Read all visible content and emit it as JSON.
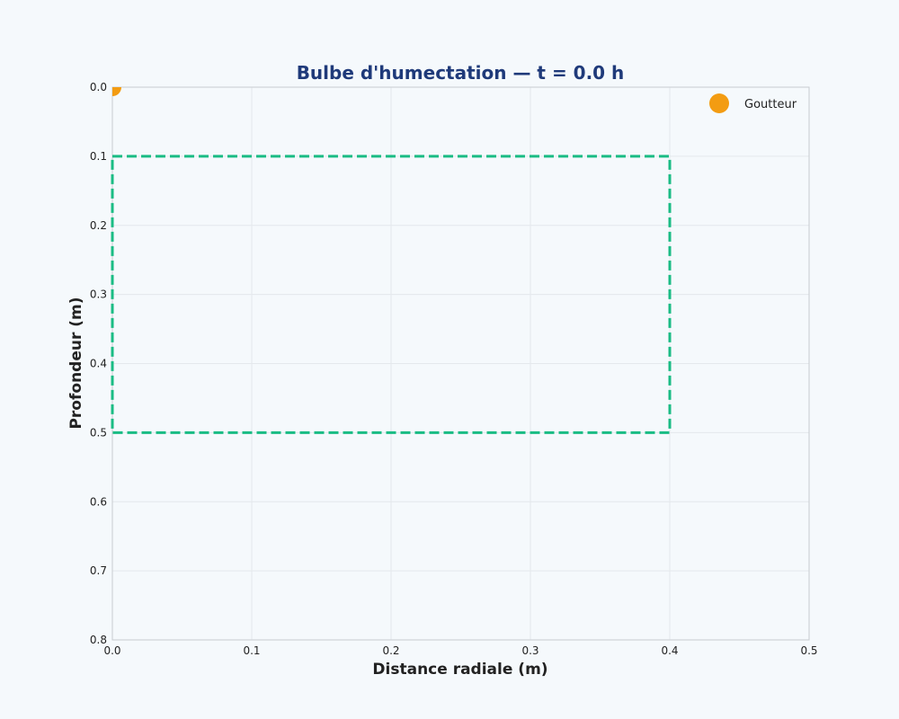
{
  "chart_data": {
    "type": "scatter",
    "title": "Bulbe d'humectation — t = 0.0 h",
    "xlabel": "Distance radiale (m)",
    "ylabel": "Profondeur (m)",
    "xlim": [
      0.0,
      0.5
    ],
    "ylim": [
      0.0,
      0.8
    ],
    "y_inverted": true,
    "grid": true,
    "x_ticks": [
      "0.0",
      "0.1",
      "0.2",
      "0.3",
      "0.4",
      "0.5"
    ],
    "x_tick_values": [
      0.0,
      0.1,
      0.2,
      0.3,
      0.4,
      0.5
    ],
    "y_ticks": [
      "0.0",
      "0.1",
      "0.2",
      "0.3",
      "0.4",
      "0.5",
      "0.6",
      "0.7",
      "0.8"
    ],
    "y_tick_values": [
      0.0,
      0.1,
      0.2,
      0.3,
      0.4,
      0.5,
      0.6,
      0.7,
      0.8
    ],
    "series": [
      {
        "name": "Goutteur",
        "kind": "marker",
        "x": [
          0.0
        ],
        "y": [
          0.0
        ],
        "color": "#f39c12"
      }
    ],
    "zone": {
      "style": "dashed",
      "color": "#1abc84",
      "x0": 0.0,
      "x1": 0.4,
      "y0": 0.1,
      "y1": 0.5
    },
    "legend": {
      "position": "top-right",
      "entries": [
        "Goutteur"
      ]
    },
    "colors": {
      "background": "#f5f9fc",
      "plot_background": "#f5f9fc",
      "grid": "#e4e8ec",
      "frame": "#c8ccd0",
      "title": "#1f3a7a"
    }
  }
}
